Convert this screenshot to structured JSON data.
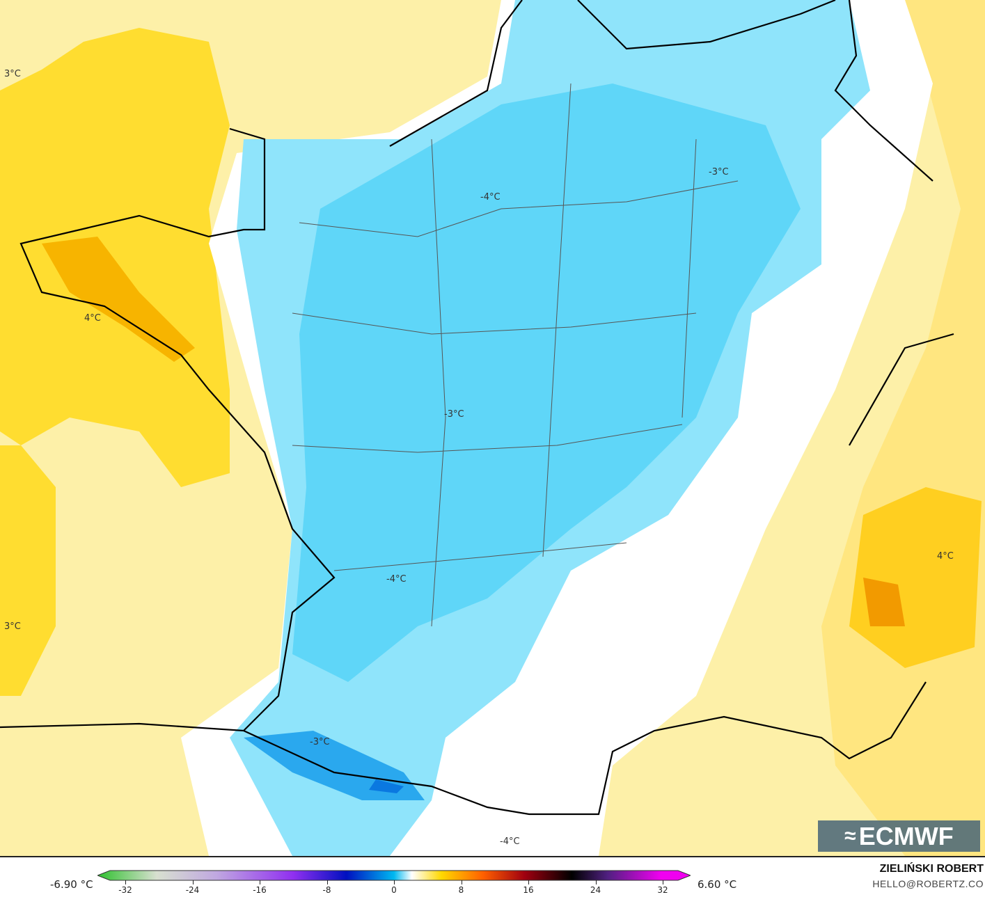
{
  "map": {
    "contour_labels": [
      {
        "text": "3°C"
      },
      {
        "text": "4°C"
      },
      {
        "text": "3°C"
      },
      {
        "text": "-4°C"
      },
      {
        "text": "-3°C"
      },
      {
        "text": "-3°C"
      },
      {
        "text": "-4°C"
      },
      {
        "text": "-3°C"
      },
      {
        "text": "-4°C"
      },
      {
        "text": "4°C"
      }
    ],
    "colors": {
      "sea_light": "#fdf0a8",
      "sea_dark": "#ffd800",
      "warm_core": "#f4a400",
      "cold": "#6fdcfa",
      "cold_deep": "#2ab4f4",
      "neutral": "#ffffff"
    }
  },
  "logo": {
    "text": "ECMWF",
    "icon": "ecmwf-logo-icon"
  },
  "legend": {
    "min_value": "-6.90 °C",
    "max_value": "6.60 °C",
    "ticks": [
      "-32",
      "-24",
      "-16",
      "-8",
      "0",
      "8",
      "16",
      "24",
      "32"
    ]
  },
  "credit": {
    "author": "ZIELIŃSKI ROBERT",
    "email": "HELLO@ROBERTZ.CO"
  }
}
